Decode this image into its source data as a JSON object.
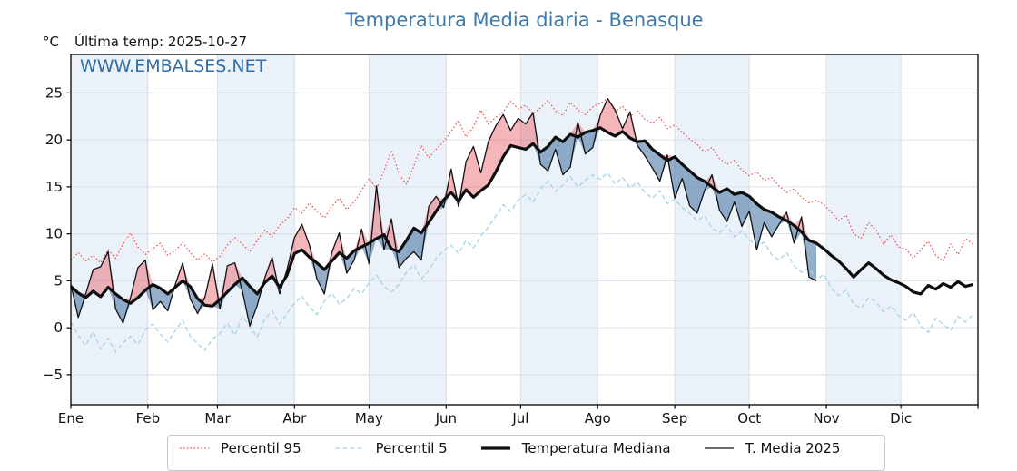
{
  "title": "Temperatura Media diaria - Benasque",
  "header": {
    "unit": "°C",
    "last_temp": "Última temp: 2025-10-27",
    "watermark": "WWW.EMBALSES.NET"
  },
  "legend": {
    "items": [
      {
        "label": "Percentil 95",
        "style": "dotted",
        "color": "#e84a4a",
        "width": 1.2
      },
      {
        "label": "Percentil 5",
        "style": "dashed",
        "color": "#a5d3ea",
        "width": 1.3
      },
      {
        "label": "Temperatura Mediana",
        "style": "solid",
        "color": "#111111",
        "width": 3.2
      },
      {
        "label": "T. Media 2025",
        "style": "solid",
        "color": "#111111",
        "width": 1.3
      }
    ]
  },
  "colors": {
    "band": "#eaf1f9",
    "grid": "#dadfe6",
    "spine": "#000000",
    "fill_above": "rgba(232,80,90,0.42)",
    "fill_below": "rgba(62,110,160,0.55)",
    "p95_line": "#e84a4a",
    "p5_line": "#a5d3ea",
    "median_line": "#0d0d0d",
    "t2025_line": "#111111",
    "title_blue": "#3b79ae",
    "watermark_blue": "#336fa6"
  },
  "chart_data": {
    "type": "line",
    "title": "Temperatura Media diaria - Benasque",
    "ylabel": "°C",
    "ylim": [
      -8.2,
      29.1
    ],
    "yticks": [
      -5,
      0,
      5,
      10,
      15,
      20,
      25
    ],
    "grid": true,
    "shaded_month_parity": "odd months (Ene, Mar, May, Jul, Sep, Nov) have light blue background band",
    "months": [
      {
        "label": "Ene",
        "start_day": 0
      },
      {
        "label": "Feb",
        "start_day": 31
      },
      {
        "label": "Mar",
        "start_day": 59
      },
      {
        "label": "Abr",
        "start_day": 90
      },
      {
        "label": "May",
        "start_day": 120
      },
      {
        "label": "Jun",
        "start_day": 151
      },
      {
        "label": "Jul",
        "start_day": 181
      },
      {
        "label": "Ago",
        "start_day": 212
      },
      {
        "label": "Sep",
        "start_day": 243
      },
      {
        "label": "Oct",
        "start_day": 273
      },
      {
        "label": "Nov",
        "start_day": 304
      },
      {
        "label": "Dic",
        "start_day": 334
      }
    ],
    "sample_step_days": 3,
    "days": [
      0,
      3,
      6,
      9,
      12,
      15,
      18,
      21,
      24,
      27,
      30,
      33,
      36,
      39,
      42,
      45,
      48,
      51,
      54,
      57,
      60,
      63,
      66,
      69,
      72,
      75,
      78,
      81,
      84,
      87,
      90,
      93,
      96,
      99,
      102,
      105,
      108,
      111,
      114,
      117,
      120,
      123,
      126,
      129,
      132,
      135,
      138,
      141,
      144,
      147,
      150,
      153,
      156,
      159,
      162,
      165,
      168,
      171,
      174,
      177,
      180,
      183,
      186,
      189,
      192,
      195,
      198,
      201,
      204,
      207,
      210,
      213,
      216,
      219,
      222,
      225,
      228,
      231,
      234,
      237,
      240,
      243,
      246,
      249,
      252,
      255,
      258,
      261,
      264,
      267,
      270,
      273,
      276,
      279,
      282,
      285,
      288,
      291,
      294,
      297,
      300,
      303,
      306,
      309,
      312,
      315,
      318,
      321,
      324,
      327,
      330,
      333,
      336,
      339,
      342,
      345,
      348,
      351,
      354,
      357,
      360,
      363
    ],
    "series": [
      {
        "name": "Percentil 95",
        "values": [
          7.2,
          8.0,
          7.1,
          7.7,
          6.9,
          8.3,
          7.4,
          8.9,
          10.1,
          8.6,
          7.8,
          8.4,
          9.0,
          7.7,
          8.2,
          9.1,
          8.0,
          7.2,
          7.9,
          7.0,
          7.6,
          8.8,
          9.6,
          8.9,
          8.1,
          9.3,
          10.4,
          9.7,
          10.9,
          11.6,
          12.8,
          12.2,
          13.3,
          12.4,
          11.7,
          12.9,
          13.8,
          12.6,
          13.4,
          14.6,
          15.9,
          14.8,
          16.7,
          18.9,
          16.4,
          15.3,
          17.2,
          19.4,
          18.1,
          19.0,
          19.8,
          20.9,
          22.1,
          20.3,
          21.4,
          23.2,
          21.7,
          22.4,
          23.0,
          24.1,
          23.3,
          23.7,
          22.8,
          23.4,
          24.2,
          23.1,
          22.6,
          24.0,
          23.2,
          22.7,
          23.5,
          23.9,
          24.4,
          23.0,
          23.6,
          22.5,
          23.1,
          22.2,
          21.8,
          22.4,
          21.2,
          21.6,
          20.8,
          20.1,
          19.5,
          18.7,
          19.2,
          18.0,
          17.4,
          17.8,
          16.8,
          16.2,
          16.6,
          15.7,
          16.0,
          15.1,
          14.4,
          14.8,
          13.9,
          13.3,
          13.6,
          13.1,
          12.3,
          11.4,
          12.0,
          10.0,
          9.5,
          11.2,
          10.4,
          8.9,
          9.9,
          8.6,
          8.4,
          7.4,
          8.3,
          9.2,
          7.7,
          7.1,
          8.9,
          7.8,
          9.5,
          8.9
        ]
      },
      {
        "name": "Percentil 5",
        "values": [
          0.6,
          -0.8,
          -1.9,
          -0.4,
          -2.3,
          -1.1,
          -2.6,
          -1.6,
          -0.9,
          -1.8,
          -0.2,
          0.4,
          -0.7,
          -1.5,
          -0.3,
          0.8,
          -0.9,
          -1.7,
          -2.4,
          -1.2,
          -0.6,
          0.5,
          -0.8,
          1.2,
          0.1,
          -1.0,
          0.9,
          1.8,
          0.4,
          1.5,
          2.6,
          3.4,
          2.2,
          1.4,
          2.8,
          3.7,
          2.5,
          3.1,
          4.2,
          3.6,
          4.8,
          5.6,
          4.4,
          3.8,
          4.6,
          5.9,
          6.7,
          5.2,
          6.1,
          7.4,
          8.2,
          8.8,
          7.9,
          9.3,
          8.5,
          9.8,
          10.7,
          11.9,
          13.1,
          12.4,
          13.6,
          14.2,
          13.4,
          14.8,
          15.6,
          14.5,
          15.2,
          16.1,
          15.0,
          15.7,
          16.3,
          15.8,
          16.5,
          15.3,
          16.0,
          14.9,
          15.5,
          14.4,
          13.8,
          14.6,
          13.2,
          13.7,
          12.8,
          12.2,
          11.4,
          11.9,
          10.6,
          10.1,
          10.9,
          9.7,
          10.3,
          9.4,
          8.7,
          9.1,
          7.8,
          7.2,
          8.0,
          6.6,
          5.9,
          6.4,
          5.1,
          5.7,
          4.2,
          3.4,
          4.0,
          2.5,
          2.1,
          3.2,
          2.8,
          1.7,
          2.3,
          1.3,
          0.8,
          1.6,
          0.2,
          -0.5,
          1.0,
          0.4,
          -0.3,
          1.2,
          0.6,
          1.4
        ]
      },
      {
        "name": "Temperatura Mediana",
        "values": [
          4.4,
          3.7,
          3.2,
          3.9,
          3.3,
          4.3,
          3.6,
          3.0,
          2.6,
          3.2,
          4.0,
          4.6,
          4.2,
          3.6,
          4.3,
          5.0,
          4.4,
          3.1,
          2.4,
          2.3,
          3.0,
          3.8,
          4.6,
          5.3,
          4.4,
          3.6,
          4.8,
          5.5,
          4.3,
          5.6,
          7.9,
          8.3,
          7.5,
          6.9,
          6.2,
          7.1,
          8.0,
          7.4,
          8.2,
          8.6,
          9.0,
          9.5,
          9.9,
          8.4,
          8.1,
          9.3,
          10.6,
          10.1,
          11.2,
          12.4,
          13.6,
          14.4,
          13.5,
          14.7,
          13.9,
          14.6,
          15.2,
          16.6,
          18.2,
          19.4,
          19.2,
          19.0,
          19.6,
          18.7,
          19.3,
          20.3,
          19.8,
          20.6,
          20.3,
          20.8,
          21.0,
          21.3,
          20.8,
          20.4,
          20.9,
          20.2,
          19.8,
          19.9,
          19.0,
          18.4,
          17.8,
          18.2,
          17.4,
          16.7,
          16.0,
          15.6,
          15.0,
          14.4,
          14.8,
          14.2,
          14.4,
          14.0,
          13.2,
          12.6,
          12.3,
          11.8,
          11.4,
          10.9,
          10.2,
          9.3,
          9.0,
          8.4,
          7.7,
          7.1,
          6.3,
          5.4,
          6.2,
          6.9,
          6.3,
          5.6,
          5.1,
          4.8,
          4.4,
          3.8,
          3.6,
          4.5,
          4.1,
          4.7,
          4.3,
          4.9,
          4.4,
          4.6
        ]
      },
      {
        "name": "T. Media 2025",
        "last_day": 300,
        "values": [
          4.6,
          1.1,
          3.6,
          6.2,
          6.5,
          8.1,
          2.0,
          0.5,
          3.2,
          6.4,
          7.2,
          1.9,
          2.8,
          1.8,
          4.6,
          6.9,
          3.1,
          1.5,
          3.3,
          6.8,
          2.0,
          6.6,
          6.9,
          3.9,
          0.2,
          2.4,
          5.3,
          7.5,
          3.6,
          6.2,
          9.6,
          11.0,
          8.8,
          5.2,
          3.6,
          8.0,
          10.1,
          5.8,
          7.2,
          10.5,
          6.8,
          15.1,
          8.3,
          11.6,
          6.4,
          7.4,
          8.1,
          7.2,
          12.9,
          14.0,
          12.8,
          16.9,
          12.9,
          17.7,
          19.3,
          16.5,
          19.8,
          21.5,
          22.7,
          21.0,
          22.3,
          21.7,
          22.9,
          17.4,
          16.7,
          19.0,
          16.3,
          17.1,
          21.9,
          18.5,
          19.2,
          22.6,
          24.4,
          23.2,
          21.2,
          23.0,
          19.4,
          18.3,
          17.0,
          15.6,
          18.4,
          13.8,
          15.9,
          13.0,
          12.2,
          14.6,
          16.3,
          12.5,
          11.3,
          13.4,
          10.8,
          12.4,
          8.3,
          11.2,
          9.7,
          11.0,
          12.3,
          9.0,
          11.8,
          5.4,
          5.0
        ]
      }
    ],
    "fills": {
      "between": [
        "T. Media 2025",
        "Temperatura Mediana"
      ],
      "above_color": "rgba(232,80,90,0.42)",
      "below_color": "rgba(62,110,160,0.55)"
    },
    "legend_position": "bottom, horizontal, boxed (partially cut off at figure bottom)"
  }
}
